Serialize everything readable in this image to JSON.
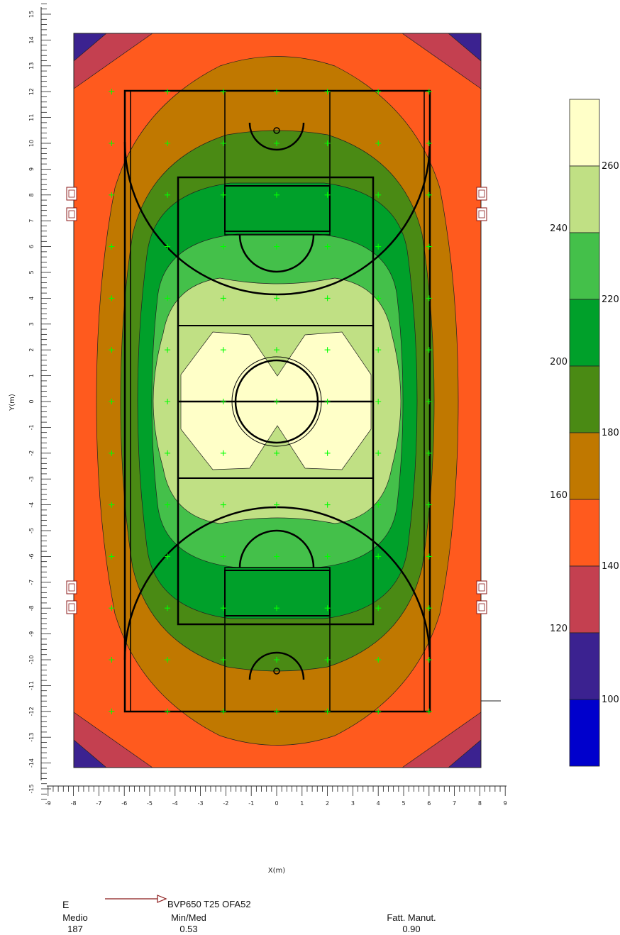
{
  "chart_data": {
    "type": "heatmap",
    "xlabel": "X(m)",
    "ylabel": "Y(m)",
    "xlim": [
      -9.5,
      9.5
    ],
    "ylim": [
      -15.5,
      15.5
    ],
    "x_ticks": [
      -9,
      -8,
      -7,
      -6,
      -5,
      -4,
      -3,
      -2,
      -1,
      0,
      1,
      2,
      3,
      4,
      5,
      6,
      7,
      8,
      9
    ],
    "y_ticks": [
      -15,
      -14,
      -13,
      -12,
      -11,
      -10,
      -9,
      -8,
      -7,
      -6,
      -5,
      -4,
      -3,
      -2,
      -1,
      0,
      1,
      2,
      3,
      4,
      5,
      6,
      7,
      8,
      9,
      10,
      11,
      12,
      13,
      14,
      15
    ],
    "color_scale": {
      "levels": [
        100,
        120,
        140,
        160,
        180,
        200,
        220,
        240,
        260
      ],
      "left_labels": [
        120,
        160,
        200,
        240
      ],
      "right_labels": [
        100,
        140,
        180,
        220,
        260
      ],
      "colors": [
        "#0000cc",
        "#3b2290",
        "#c44050",
        "#ff5a1e",
        "#c07800",
        "#4a8a14",
        "#00a02a",
        "#44c04a",
        "#c0e084",
        "#ffffc8"
      ]
    },
    "regions": [
      {
        "band": 1,
        "desc": "corners",
        "value_range": [
          100,
          120
        ]
      },
      {
        "band": 2,
        "desc": "corner band",
        "value_range": [
          120,
          140
        ]
      },
      {
        "band": 3,
        "desc": "outer",
        "value_range": [
          140,
          160
        ]
      },
      {
        "band": 9,
        "desc": "center",
        "value_range": [
          260,
          280
        ]
      }
    ]
  },
  "legend": {
    "quantity": "E",
    "luminaire": "BVP650 T25 OFA52"
  },
  "stats": [
    {
      "label": "Medio",
      "value": "187"
    },
    {
      "label": "Min/Med",
      "value": "0.53"
    },
    {
      "label": "Fatt. Manut.",
      "value": "0.90"
    }
  ],
  "colors": {
    "court_line": "#000000",
    "grid_marker": "#00ff00",
    "luminaire": "#8b1a1a"
  }
}
